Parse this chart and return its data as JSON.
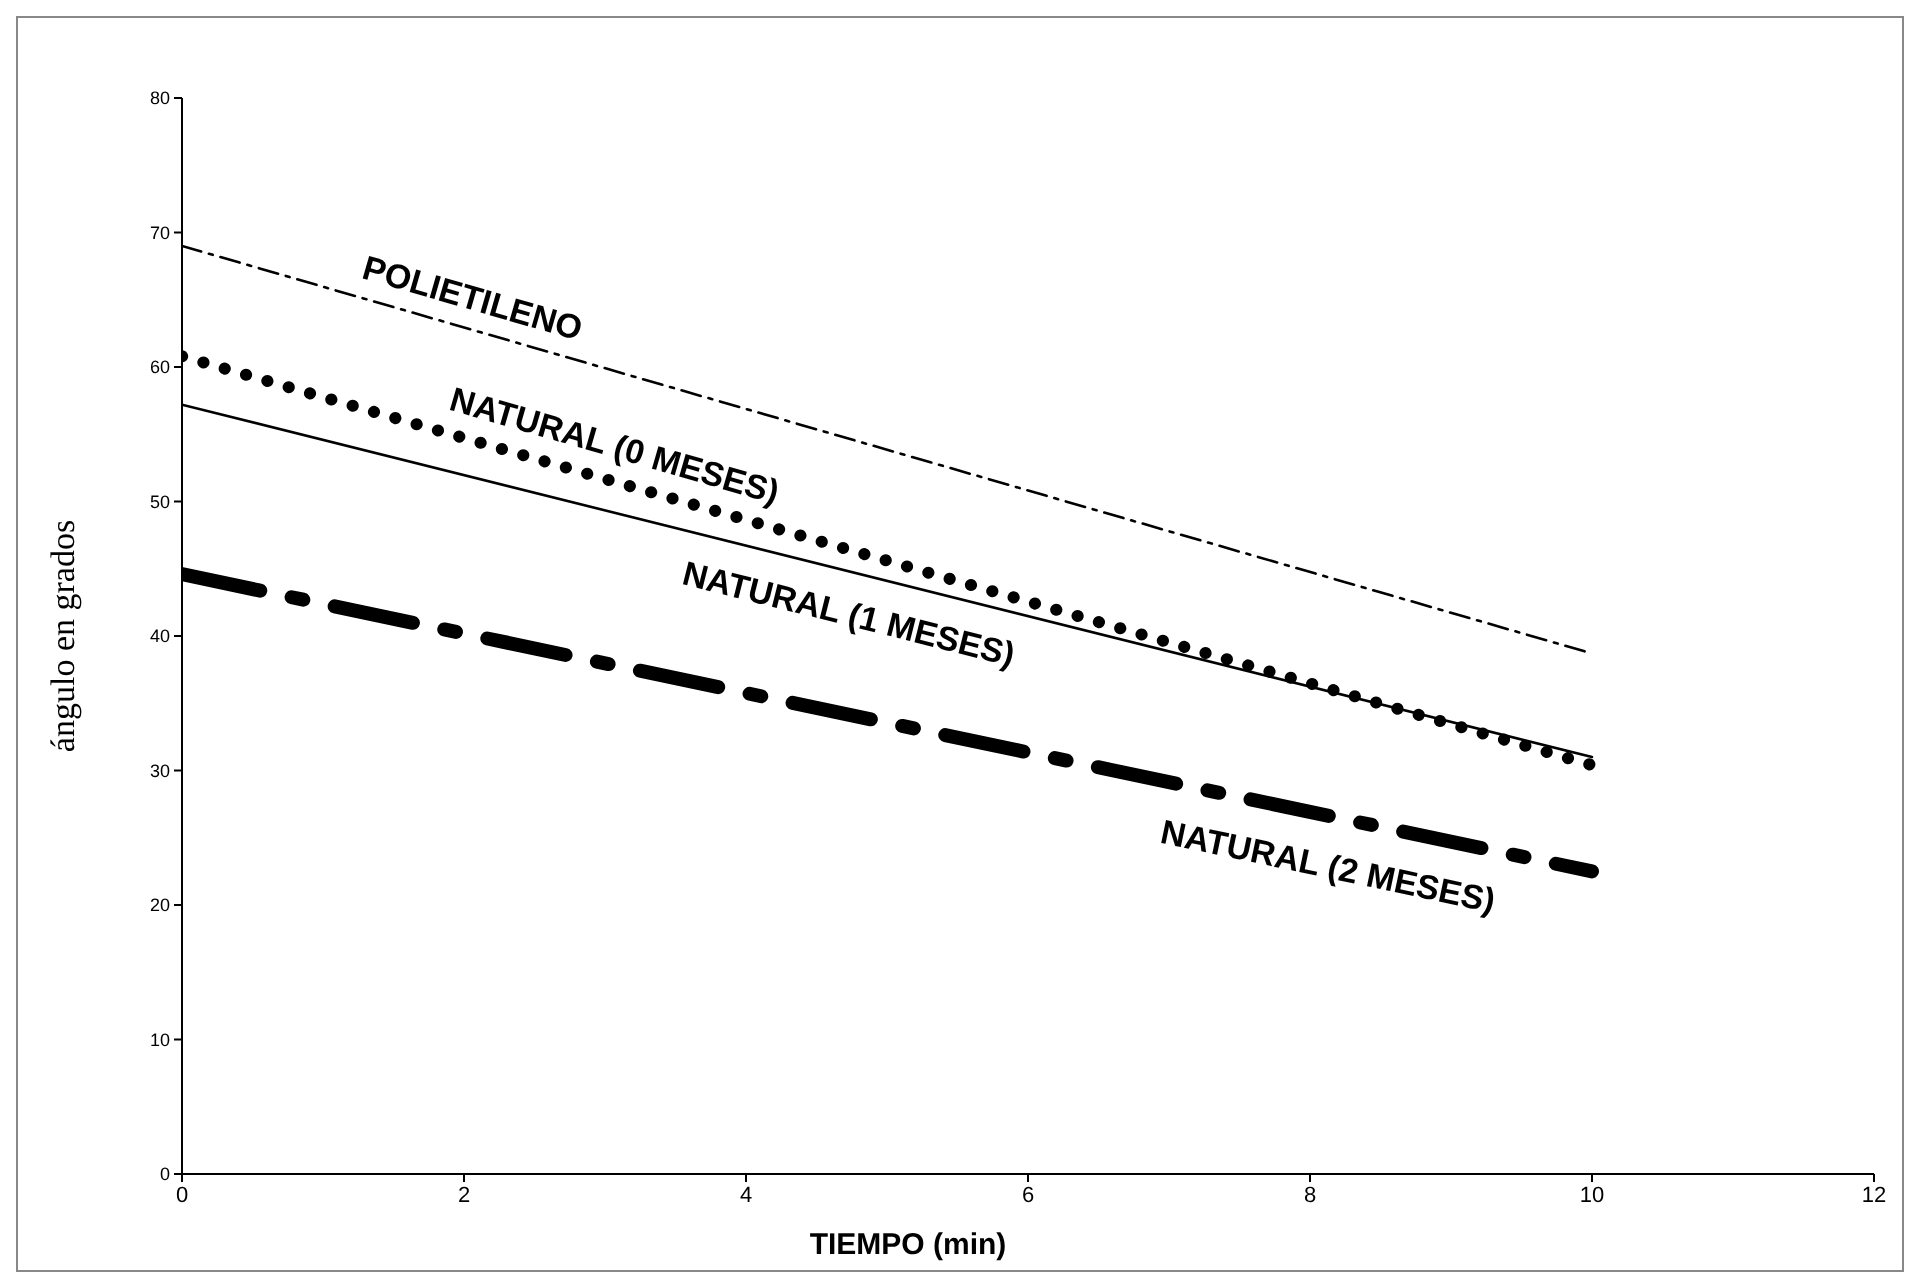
{
  "chart_data": {
    "type": "line",
    "xlabel": "TIEMPO (min)",
    "ylabel": "ángulo en grados",
    "xlim": [
      0,
      12
    ],
    "xticks": [
      0,
      2,
      4,
      6,
      8,
      10,
      12
    ],
    "ylim": [
      0,
      80
    ],
    "yticks": [
      0,
      10,
      20,
      30,
      40,
      50,
      60,
      70,
      80
    ],
    "x": [
      0,
      10
    ],
    "grid": false,
    "legend": false,
    "marker": "none",
    "series": [
      {
        "name": "POLIETILENO",
        "color": "#000000",
        "values": [
          69,
          38.7
        ],
        "line_style": "dashdot"
      },
      {
        "name": "NATURAL (0 MESES)",
        "color": "#000000",
        "values": [
          60.8,
          30.4
        ],
        "line_style": "dotted"
      },
      {
        "name": "NATURAL (1 MESES)",
        "color": "#000000",
        "values": [
          57.2,
          31
        ],
        "line_style": "solid"
      },
      {
        "name": "NATURAL (2 MESES)",
        "color": "#000000",
        "values": [
          44.6,
          22.5
        ],
        "line_style": "longdashdot"
      }
    ]
  }
}
